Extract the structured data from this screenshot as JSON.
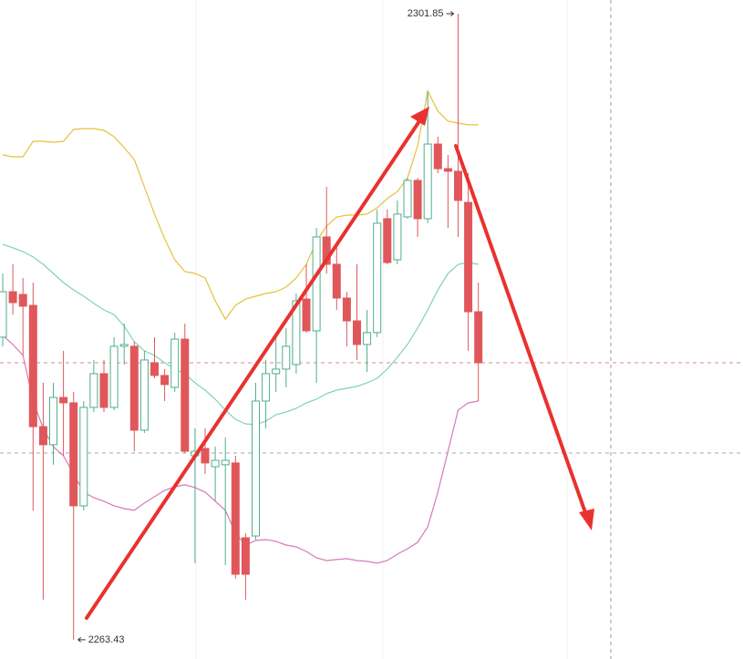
{
  "chart_data": {
    "type": "candlestick",
    "ylim": [
      2262.25,
      2302.69
    ],
    "up_color": "#4fae8c",
    "down_color": "#e0575b",
    "open": [
      2282.0,
      2284.79,
      2284.62,
      2283.95,
      2276.51,
      2275.4,
      2278.3,
      2277.97,
      2271.65,
      2277.69,
      2279.76,
      2277.69,
      2281.44,
      2281.44,
      2276.29,
      2280.43,
      2279.65,
      2278.92,
      2281.88,
      2274.72,
      2275.17,
      2274.05,
      2274.17,
      2274.28,
      2269.69,
      2269.8,
      2278.08,
      2279.76,
      2280.04,
      2280.32,
      2284.34,
      2282.39,
      2288.15,
      2286.47,
      2284.4,
      2283.0,
      2281.55,
      2282.28,
      2289.27,
      2286.75,
      2289.38,
      2291.62,
      2289.27,
      2293.85,
      2292.34,
      2292.18,
      2290.27,
      2283.56
    ],
    "high": [
      2285.91,
      2286.47,
      2285.63,
      2285.35,
      2279.2,
      2279.2,
      2281.16,
      2278.64,
      2278.08,
      2280.6,
      2280.6,
      2282.0,
      2282.83,
      2281.72,
      2281.16,
      2282.0,
      2280.04,
      2282.28,
      2282.83,
      2276.4,
      2276.4,
      2275.28,
      2275.84,
      2274.72,
      2269.97,
      2279.2,
      2280.6,
      2282.0,
      2282.56,
      2284.68,
      2286.47,
      2288.71,
      2291.22,
      2287.59,
      2284.79,
      2286.47,
      2283.67,
      2289.83,
      2289.83,
      2290.39,
      2291.78,
      2291.78,
      2297.1,
      2294.3,
      2293.18,
      2301.85,
      2292.06,
      2285.35
    ],
    "low": [
      2281.44,
      2283.39,
      2280.88,
      2271.37,
      2265.89,
      2274.17,
      2274.72,
      2263.43,
      2271.37,
      2277.41,
      2277.41,
      2277.52,
      2280.32,
      2275.0,
      2276.12,
      2279.48,
      2278.08,
      2278.64,
      2274.89,
      2268.13,
      2273.61,
      2271.93,
      2268.01,
      2267.18,
      2265.89,
      2269.58,
      2276.4,
      2278.64,
      2278.92,
      2279.76,
      2282.28,
      2279.2,
      2285.91,
      2283.67,
      2281.44,
      2280.6,
      2279.87,
      2282.0,
      2286.47,
      2286.47,
      2289.27,
      2288.15,
      2288.99,
      2292.06,
      2288.71,
      2288.15,
      2281.16,
      2278.08
    ],
    "close": [
      2284.79,
      2284.12,
      2283.9,
      2276.51,
      2275.4,
      2278.3,
      2277.97,
      2271.65,
      2277.69,
      2279.76,
      2277.69,
      2281.44,
      2281.55,
      2276.29,
      2280.6,
      2279.65,
      2279.09,
      2281.88,
      2275.0,
      2275.0,
      2274.28,
      2274.44,
      2274.44,
      2267.45,
      2267.45,
      2278.08,
      2279.76,
      2280.04,
      2281.44,
      2284.23,
      2282.39,
      2288.15,
      2286.47,
      2284.4,
      2283.0,
      2281.55,
      2282.28,
      2288.99,
      2286.58,
      2289.55,
      2291.62,
      2289.27,
      2293.85,
      2292.34,
      2292.18,
      2290.39,
      2283.56,
      2280.43
    ],
    "bands": [
      {
        "color": "#e6c13c",
        "values": [
          2293.18,
          2293.07,
          2293.07,
          2294.02,
          2294.02,
          2293.96,
          2294.02,
          2294.75,
          2294.8,
          2294.8,
          2294.69,
          2294.3,
          2293.63,
          2292.9,
          2291.22,
          2289.55,
          2288.04,
          2286.75,
          2286.02,
          2285.91,
          2285.63,
          2284.23,
          2283.11,
          2283.95,
          2284.34,
          2284.51,
          2284.68,
          2284.79,
          2285.07,
          2285.63,
          2286.47,
          2287.87,
          2288.82,
          2289.38,
          2289.49,
          2289.49,
          2289.55,
          2289.94,
          2290.5,
          2290.94,
          2291.78,
          2293.74,
          2297.1,
          2295.87,
          2295.25,
          2295.14,
          2295.03,
          2295.03
        ]
      },
      {
        "color": "#7fd3b5",
        "values": [
          2287.7,
          2287.48,
          2287.25,
          2286.92,
          2286.47,
          2285.91,
          2285.35,
          2284.9,
          2284.51,
          2284.07,
          2283.67,
          2283.39,
          2282.67,
          2281.72,
          2281.16,
          2280.88,
          2280.43,
          2280.04,
          2279.76,
          2279.2,
          2278.75,
          2278.19,
          2277.52,
          2276.96,
          2276.68,
          2276.63,
          2276.85,
          2277.24,
          2277.41,
          2277.63,
          2277.97,
          2278.19,
          2278.53,
          2278.75,
          2278.86,
          2278.98,
          2279.2,
          2279.48,
          2280.04,
          2280.77,
          2281.55,
          2282.56,
          2283.67,
          2284.9,
          2285.91,
          2286.47,
          2286.58,
          2286.47
        ]
      },
      {
        "color": "#d57ab8",
        "values": [
          2282.11,
          2281.55,
          2280.88,
          2278.08,
          2276.4,
          2275.28,
          2274.72,
          2273.61,
          2272.49,
          2272.15,
          2271.93,
          2271.65,
          2271.48,
          2271.37,
          2271.82,
          2272.21,
          2272.6,
          2272.82,
          2272.94,
          2272.77,
          2272.49,
          2271.93,
          2271.37,
          2269.97,
          2269.24,
          2269.52,
          2269.58,
          2269.47,
          2269.24,
          2269.13,
          2268.85,
          2268.46,
          2268.29,
          2268.35,
          2268.41,
          2268.29,
          2268.24,
          2268.13,
          2268.29,
          2268.68,
          2269.02,
          2269.41,
          2270.36,
          2272.49,
          2275.0,
          2277.52,
          2277.97,
          2278.08
        ]
      }
    ],
    "levels": [
      {
        "value": 2280.43,
        "color": "#d98a8a"
      },
      {
        "value": 2274.89,
        "color": "#aaaaaa"
      }
    ],
    "high_marker": 2301.85,
    "low_marker": 2263.43
  }
}
